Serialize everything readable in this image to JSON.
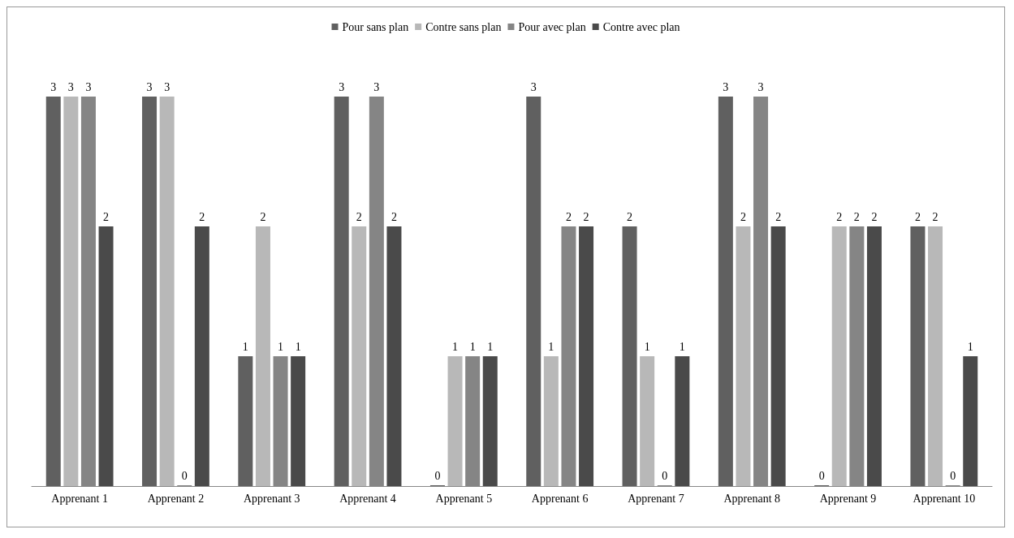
{
  "chart_data": {
    "type": "bar",
    "categories": [
      "Apprenant 1",
      "Apprenant 2",
      "Apprenant 3",
      "Apprenant 4",
      "Apprenant 5",
      "Apprenant 6",
      "Apprenant 7",
      "Apprenant 8",
      "Apprenant 9",
      "Apprenant 10"
    ],
    "series": [
      {
        "name": "Pour sans plan",
        "color": "#606060",
        "values": [
          3,
          3,
          1,
          3,
          0,
          3,
          2,
          3,
          0,
          2
        ]
      },
      {
        "name": "Contre sans plan",
        "color": "#b8b8b8",
        "values": [
          3,
          3,
          2,
          2,
          1,
          1,
          1,
          2,
          2,
          2
        ]
      },
      {
        "name": "Pour avec plan",
        "color": "#858585",
        "values": [
          3,
          0,
          1,
          3,
          1,
          2,
          0,
          3,
          2,
          0
        ]
      },
      {
        "name": "Contre avec plan",
        "color": "#4a4a4a",
        "values": [
          2,
          2,
          1,
          2,
          1,
          2,
          1,
          2,
          2,
          1
        ]
      }
    ],
    "data_labels": true,
    "legend": "top"
  }
}
